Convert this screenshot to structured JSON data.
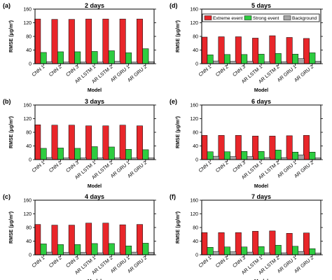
{
  "legend": {
    "items": [
      {
        "label": "Extreme event",
        "color": "#e8262a"
      },
      {
        "label": "Strong event",
        "color": "#2ecc40"
      },
      {
        "label": "Background",
        "color": "#a6a6a6"
      }
    ]
  },
  "chart_data": [
    {
      "type": "bar",
      "panel": "(a)",
      "title": "2 days",
      "xlabel": "Model",
      "ylabel": "RMSE (μg/m³)",
      "ylim": [
        0,
        160
      ],
      "yticks": [
        0,
        40,
        80,
        120,
        160
      ],
      "categories": [
        "CNN 1",
        "CNN 2",
        "CNN 3",
        "AR LSTM 1",
        "AR LSTM 2",
        "AR GRU 1",
        "AR GRU 2"
      ],
      "series": [
        {
          "name": "Extreme event",
          "values": [
            131,
            130,
            130,
            131,
            131,
            131,
            131
          ]
        },
        {
          "name": "Strong event",
          "values": [
            33,
            35,
            35,
            36,
            38,
            32,
            44
          ]
        },
        {
          "name": "Background",
          "values": [
            6,
            5,
            5,
            5,
            7,
            5,
            6
          ]
        }
      ]
    },
    {
      "type": "bar",
      "panel": "(b)",
      "title": "3 days",
      "xlabel": "Model",
      "ylabel": "RMSE (μg/m³)",
      "ylim": [
        0,
        160
      ],
      "yticks": [
        0,
        40,
        80,
        120,
        160
      ],
      "categories": [
        "CNN 1",
        "CNN 2",
        "CNN 3",
        "AR LSTM 1",
        "AR LSTM 2",
        "AR GRU 1",
        "AR GRU 2"
      ],
      "series": [
        {
          "name": "Extreme event",
          "values": [
            102,
            101,
            101,
            99,
            99,
            101,
            99
          ]
        },
        {
          "name": "Strong event",
          "values": [
            33,
            34,
            33,
            38,
            37,
            30,
            29
          ]
        },
        {
          "name": "Background",
          "values": [
            6,
            5,
            5,
            5,
            5,
            5,
            5
          ]
        }
      ]
    },
    {
      "type": "bar",
      "panel": "(c)",
      "title": "4 days",
      "xlabel": "Model",
      "ylabel": "RMSE (μg/m³)",
      "ylim": [
        0,
        160
      ],
      "yticks": [
        0,
        40,
        80,
        120,
        160
      ],
      "categories": [
        "CNN 1",
        "CNN 2",
        "CNN 3",
        "AR LSTM 1",
        "AR LSTM 2",
        "AR GRU 1",
        "AR GRU 2"
      ],
      "series": [
        {
          "name": "Extreme event",
          "values": [
            89,
            87,
            87,
            93,
            93,
            88,
            89
          ]
        },
        {
          "name": "Strong event",
          "values": [
            32,
            30,
            30,
            33,
            33,
            26,
            34
          ]
        },
        {
          "name": "Background",
          "values": [
            8,
            7,
            7,
            6,
            6,
            8,
            7
          ]
        }
      ]
    },
    {
      "type": "bar",
      "panel": "(d)",
      "title": "5 days",
      "xlabel": "Model",
      "ylabel": "RMSE (μg/m³)",
      "ylim": [
        0,
        160
      ],
      "yticks": [
        0,
        40,
        80,
        120,
        160
      ],
      "categories": [
        "CNN 1",
        "CNN 2",
        "CNN 3",
        "AR LSTM 1",
        "AR LSTM 2",
        "AR GRU 1",
        "AR GRU 2"
      ],
      "series": [
        {
          "name": "Extreme event",
          "values": [
            78,
            79,
            79,
            75,
            82,
            77,
            74
          ]
        },
        {
          "name": "Strong event",
          "values": [
            26,
            27,
            27,
            28,
            30,
            28,
            32
          ]
        },
        {
          "name": "Background",
          "values": [
            8,
            7,
            7,
            6,
            6,
            15,
            7
          ]
        }
      ]
    },
    {
      "type": "bar",
      "panel": "(e)",
      "title": "6 days",
      "xlabel": "Model",
      "ylabel": "RMSE (μg/m³)",
      "ylim": [
        0,
        160
      ],
      "yticks": [
        0,
        40,
        80,
        120,
        160
      ],
      "categories": [
        "CNN 1",
        "CNN 2",
        "CNN 3",
        "AR LSTM 1",
        "AR LSTM 2",
        "AR GRU 1",
        "AR GRU 2"
      ],
      "series": [
        {
          "name": "Extreme event",
          "values": [
            71,
            71,
            71,
            69,
            69,
            70,
            71
          ]
        },
        {
          "name": "Strong event",
          "values": [
            23,
            23,
            24,
            24,
            28,
            22,
            22
          ]
        },
        {
          "name": "Background",
          "values": [
            10,
            9,
            9,
            6,
            6,
            14,
            5
          ]
        }
      ]
    },
    {
      "type": "bar",
      "panel": "(f)",
      "title": "7 days",
      "xlabel": "Model",
      "ylabel": "RMSE (μg/m³)",
      "ylim": [
        0,
        160
      ],
      "yticks": [
        0,
        40,
        80,
        120,
        160
      ],
      "categories": [
        "CNN 1",
        "CNN 2",
        "CNN 3",
        "AR LSTM 1",
        "AR LSTM 2",
        "AR GRU 1",
        "AR GRU 2"
      ],
      "series": [
        {
          "name": "Extreme event",
          "values": [
            65,
            65,
            65,
            69,
            70,
            63,
            64
          ]
        },
        {
          "name": "Strong event",
          "values": [
            22,
            23,
            23,
            24,
            28,
            25,
            18
          ]
        },
        {
          "name": "Background",
          "values": [
            10,
            9,
            8,
            6,
            6,
            10,
            5
          ]
        }
      ]
    }
  ]
}
